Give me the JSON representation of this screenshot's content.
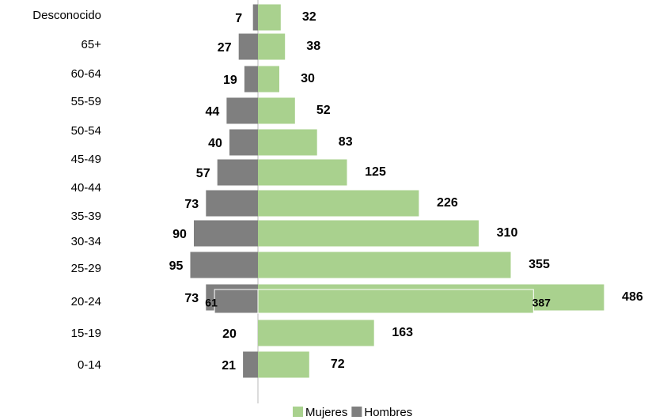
{
  "chart_data": {
    "type": "pyramid",
    "categories": [
      "Desconocido",
      "65+",
      "60-64",
      "55-59",
      "50-54",
      "45-49",
      "40-44",
      "35-39",
      "30-34",
      "25-29",
      "20-24",
      "15-19",
      "0-14"
    ],
    "series": [
      {
        "name": "Mujeres",
        "color": "#a9d18e",
        "values": [
          32,
          38,
          30,
          52,
          83,
          125,
          226,
          310,
          355,
          486,
          163,
          72,
          null
        ]
      },
      {
        "name": "Hombres",
        "color": "#7f7f7f",
        "values": [
          7,
          27,
          19,
          44,
          40,
          57,
          73,
          90,
          95,
          73,
          20,
          21,
          null
        ]
      }
    ],
    "overlay": [
      {
        "series": 0,
        "category": 9,
        "value": 387
      },
      {
        "series": 1,
        "category": 9,
        "value": 61
      }
    ],
    "legend": "bottom"
  }
}
